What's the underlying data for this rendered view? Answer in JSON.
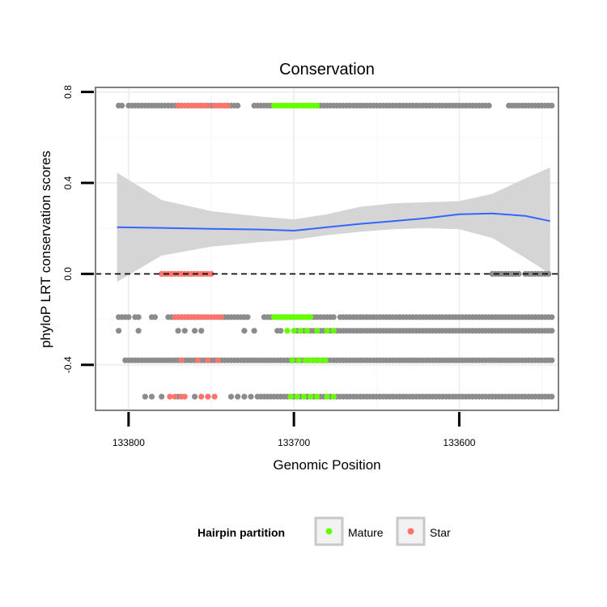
{
  "chart_data": {
    "type": "scatter",
    "title": "Conservation",
    "xlabel": "Genomic Position",
    "ylabel": "phyloP LRT conservation scores",
    "x_reversed": true,
    "xlim": [
      133820,
      133540
    ],
    "ylim": [
      -0.6,
      0.82
    ],
    "x_ticks": [
      {
        "value": 133800,
        "label": "133800"
      },
      {
        "value": 133700,
        "label": "133700"
      },
      {
        "value": 133600,
        "label": "133600"
      }
    ],
    "y_ticks": [
      {
        "value": -0.4,
        "label": "-0.4"
      },
      {
        "value": 0.0,
        "label": "0.0"
      },
      {
        "value": 0.4,
        "label": "0.4"
      },
      {
        "value": 0.8,
        "label": "0.8"
      }
    ],
    "reference_line": {
      "y": 0.0,
      "style": "dashed"
    },
    "legend": {
      "title": "Hairpin partition",
      "position": "bottom",
      "entries": [
        {
          "label": "Mature",
          "color": "#66ff00"
        },
        {
          "label": "Star",
          "color": "#f8766d"
        }
      ]
    },
    "colors": {
      "other": "#8c8c8c",
      "mature": "#66ff00",
      "star": "#f8766d",
      "smooth": "#3366ff",
      "ribbon": "#d3d3d3",
      "panel_border": "#7f7f7f",
      "grid": "#efefef"
    },
    "smooth": {
      "method": "loess",
      "x": [
        133807,
        133780,
        133750,
        133720,
        133700,
        133680,
        133660,
        133640,
        133620,
        133600,
        133580,
        133560,
        133545
      ],
      "y": [
        0.205,
        0.202,
        0.198,
        0.195,
        0.19,
        0.205,
        0.22,
        0.232,
        0.245,
        0.262,
        0.266,
        0.255,
        0.232
      ],
      "lower": [
        -0.035,
        0.08,
        0.12,
        0.14,
        0.15,
        0.17,
        0.185,
        0.196,
        0.202,
        0.196,
        0.158,
        0.07,
        0.0
      ],
      "upper": [
        0.445,
        0.325,
        0.276,
        0.252,
        0.24,
        0.262,
        0.295,
        0.31,
        0.315,
        0.32,
        0.352,
        0.42,
        0.468
      ]
    },
    "series": [
      {
        "name": "Other",
        "points": [
          {
            "y": 0.74,
            "x": [
              133806,
              133804,
              133800,
              133798,
              133796,
              133794,
              133792,
              133790,
              133788,
              133786,
              133784,
              133782,
              133780,
              133778,
              133776,
              133774,
              133772,
              133770,
              133768,
              133764,
              133762,
              133760,
              133758,
              133756,
              133754,
              133752,
              133750,
              133748,
              133746,
              133744,
              133742,
              133740,
              133738,
              133736,
              133734,
              133724,
              133722,
              133720,
              133718,
              133716,
              133714,
              133712,
              133708,
              133706,
              133704,
              133702,
              133700,
              133698,
              133696,
              133694,
              133692,
              133690,
              133688,
              133686,
              133684,
              133682,
              133680,
              133678,
              133676,
              133674,
              133672,
              133670,
              133668,
              133666,
              133664,
              133662,
              133660,
              133658,
              133656,
              133654,
              133652,
              133650,
              133648,
              133646,
              133644,
              133642,
              133640,
              133638,
              133636,
              133634,
              133632,
              133630,
              133628,
              133626,
              133624,
              133622,
              133620,
              133618,
              133616,
              133614,
              133612,
              133610,
              133608,
              133606,
              133604,
              133602,
              133600,
              133598,
              133596,
              133594,
              133592,
              133590,
              133588,
              133586,
              133584,
              133582,
              133570,
              133568,
              133566,
              133564,
              133562,
              133560,
              133558,
              133556,
              133554,
              133552,
              133550,
              133548,
              133546,
              133544
            ]
          },
          {
            "y": 0.0,
            "x": [
              133580,
              133578,
              133576,
              133574,
              133572,
              133570,
              133568,
              133566,
              133564,
              133560,
              133558,
              133556,
              133554,
              133552,
              133550,
              133548,
              133546
            ]
          },
          {
            "y": -0.19,
            "x": [
              133806,
              133804,
              133802,
              133800,
              133796,
              133794,
              133786,
              133784,
              133776,
              133774,
              133772,
              133770,
              133768,
              133766,
              133764,
              133762,
              133760,
              133758,
              133744,
              133742,
              133740,
              133738,
              133736,
              133734,
              133732,
              133730,
              133728,
              133718,
              133716,
              133714,
              133712,
              133710,
              133708,
              133706,
              133704,
              133702,
              133700,
              133698,
              133696,
              133694,
              133692,
              133690,
              133688,
              133686,
              133684,
              133682,
              133680,
              133678,
              133676,
              133672,
              133670,
              133668,
              133666,
              133664,
              133662,
              133660,
              133658,
              133656,
              133654,
              133652,
              133650,
              133648,
              133646,
              133644,
              133642,
              133640,
              133638,
              133636,
              133634,
              133632,
              133630,
              133628,
              133626,
              133624,
              133622,
              133620,
              133618,
              133616,
              133614,
              133612,
              133610,
              133608,
              133606,
              133604,
              133602,
              133600,
              133598,
              133596,
              133594,
              133592,
              133590,
              133588,
              133586,
              133584,
              133582,
              133580,
              133578,
              133576,
              133574,
              133572,
              133570,
              133568,
              133566,
              133564,
              133562,
              133560,
              133558,
              133556,
              133554,
              133552,
              133550,
              133548,
              133546,
              133544
            ]
          },
          {
            "y": -0.25,
            "x": [
              133806,
              133794,
              133770,
              133766,
              133760,
              133756,
              133730,
              133724,
              133710,
              133708,
              133700,
              133698,
              133696,
              133694,
              133692,
              133690,
              133688,
              133686,
              133684,
              133682,
              133680,
              133678,
              133676,
              133674,
              133672,
              133670,
              133668,
              133666,
              133664,
              133662,
              133660,
              133658,
              133656,
              133654,
              133652,
              133650,
              133648,
              133646,
              133644,
              133642,
              133640,
              133638,
              133636,
              133634,
              133632,
              133630,
              133628,
              133626,
              133624,
              133622,
              133620,
              133618,
              133616,
              133614,
              133612,
              133610,
              133608,
              133606,
              133604,
              133602,
              133600,
              133598,
              133596,
              133594,
              133592,
              133590,
              133588,
              133586,
              133584,
              133582,
              133580,
              133578,
              133576,
              133574,
              133572,
              133570,
              133568,
              133566,
              133564,
              133562,
              133560,
              133558,
              133556,
              133554,
              133552,
              133550,
              133548,
              133546,
              133544
            ]
          },
          {
            "y": -0.38,
            "x": [
              133802,
              133800,
              133798,
              133796,
              133794,
              133792,
              133790,
              133788,
              133786,
              133784,
              133782,
              133780,
              133778,
              133776,
              133774,
              133772,
              133770,
              133768,
              133766,
              133764,
              133762,
              133760,
              133758,
              133756,
              133754,
              133752,
              133750,
              133748,
              133746,
              133744,
              133742,
              133740,
              133738,
              133736,
              133734,
              133732,
              133730,
              133728,
              133726,
              133724,
              133722,
              133720,
              133718,
              133716,
              133714,
              133712,
              133710,
              133708,
              133706,
              133704,
              133702,
              133700,
              133698,
              133696,
              133694,
              133692,
              133690,
              133688,
              133686,
              133684,
              133682,
              133680,
              133678,
              133676,
              133674,
              133672,
              133670,
              133668,
              133666,
              133664,
              133662,
              133660,
              133658,
              133656,
              133654,
              133652,
              133650,
              133648,
              133646,
              133644,
              133642,
              133640,
              133638,
              133636,
              133634,
              133632,
              133630,
              133628,
              133626,
              133624,
              133622,
              133620,
              133618,
              133616,
              133614,
              133612,
              133610,
              133608,
              133606,
              133604,
              133602,
              133600,
              133598,
              133596,
              133594,
              133592,
              133590,
              133588,
              133586,
              133584,
              133582,
              133580,
              133578,
              133576,
              133574,
              133572,
              133570,
              133568,
              133566,
              133564,
              133562,
              133560,
              133558,
              133556,
              133554,
              133552,
              133550,
              133548,
              133546,
              133544
            ]
          },
          {
            "y": -0.54,
            "x": [
              133790,
              133786,
              133780,
              133770,
              133760,
              133752,
              133738,
              133734,
              133730,
              133726,
              133722,
              133720,
              133718,
              133716,
              133714,
              133712,
              133710,
              133708,
              133706,
              133704,
              133702,
              133700,
              133698,
              133696,
              133694,
              133692,
              133690,
              133688,
              133686,
              133684,
              133682,
              133680,
              133678,
              133676,
              133674,
              133672,
              133670,
              133668,
              133666,
              133664,
              133662,
              133660,
              133658,
              133656,
              133654,
              133652,
              133650,
              133648,
              133646,
              133644,
              133642,
              133640,
              133638,
              133636,
              133634,
              133632,
              133630,
              133628,
              133626,
              133624,
              133622,
              133620,
              133618,
              133616,
              133614,
              133612,
              133610,
              133608,
              133606,
              133604,
              133602,
              133600,
              133598,
              133596,
              133594,
              133592,
              133590,
              133588,
              133586,
              133584,
              133582,
              133580,
              133578,
              133576,
              133574,
              133572,
              133570,
              133568,
              133566,
              133564,
              133562,
              133560,
              133558,
              133556,
              133554,
              133552,
              133550,
              133548,
              133546,
              133544
            ]
          }
        ]
      },
      {
        "name": "Mature",
        "points": [
          {
            "y": 0.74,
            "x": [
              133712,
              133710,
              133708,
              133706,
              133704,
              133702,
              133700,
              133698,
              133696,
              133694,
              133692,
              133690,
              133688,
              133686
            ]
          },
          {
            "y": -0.19,
            "x": [
              133712,
              133710,
              133708,
              133706,
              133704,
              133702,
              133700,
              133698,
              133696,
              133694,
              133692,
              133690
            ]
          },
          {
            "y": -0.25,
            "x": [
              133704,
              133700,
              133696,
              133692,
              133686,
              133680,
              133676
            ]
          },
          {
            "y": -0.38,
            "x": [
              133701,
              133697,
              133693,
              133690,
              133687,
              133684,
              133681
            ]
          },
          {
            "y": -0.54,
            "x": [
              133702,
              133698,
              133694,
              133690,
              133686,
              133680,
              133676
            ]
          }
        ]
      },
      {
        "name": "Star",
        "points": [
          {
            "y": 0.74,
            "x": [
              133770,
              133768,
              133766,
              133764,
              133762,
              133760,
              133758,
              133756,
              133754,
              133752,
              133748,
              133746,
              133744,
              133742,
              133740
            ]
          },
          {
            "y": 0.0,
            "x": [
              133780,
              133778,
              133776,
              133774,
              133772,
              133770,
              133768,
              133766,
              133764,
              133762,
              133760,
              133758,
              133756,
              133754,
              133752,
              133750
            ]
          },
          {
            "y": -0.19,
            "x": [
              133772,
              133770,
              133768,
              133766,
              133764,
              133762,
              133760,
              133758,
              133756,
              133754,
              133752,
              133750,
              133748,
              133746,
              133744
            ]
          },
          {
            "y": -0.38,
            "x": [
              133768,
              133758,
              133752,
              133746
            ]
          },
          {
            "y": -0.54,
            "x": [
              133775,
              133772,
              133768,
              133766,
              133756,
              133752,
              133748
            ]
          }
        ]
      }
    ]
  }
}
